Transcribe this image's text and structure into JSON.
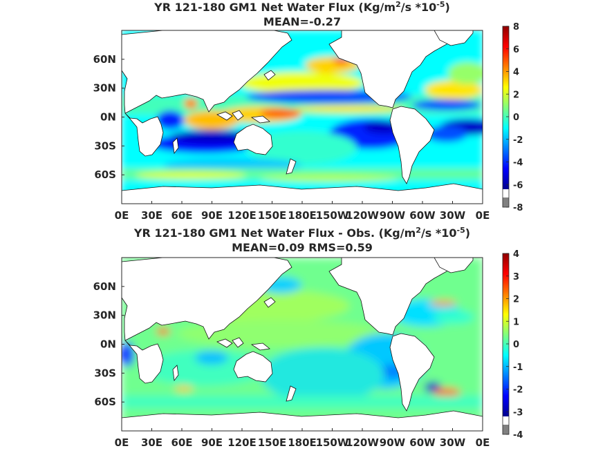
{
  "charts": [
    {
      "title_before_sup1": "YR 121-180 GM1  Net Water Flux (Kg/m",
      "title_sup1": "2",
      "title_mid": "/s *10",
      "title_sup2": "-5",
      "title_after": ")",
      "subtitle": "MEAN=-0.27",
      "colorbar_ticks": [
        "8",
        "6",
        "4",
        "2",
        "0",
        "-2",
        "-4",
        "-6",
        "-8"
      ]
    },
    {
      "title_before_sup1": "YR 121-180 GM1  Net Water Flux - Obs. (Kg/m",
      "title_sup1": "2",
      "title_mid": "/s *10",
      "title_sup2": "-5",
      "title_after": ")",
      "subtitle": "MEAN=0.09 RMS=0.59",
      "colorbar_ticks": [
        "4",
        "3",
        "2",
        "1",
        "0",
        "-1",
        "-2",
        "-3",
        "-4"
      ]
    }
  ],
  "x_ticks": [
    "0E",
    "30E",
    "60E",
    "90E",
    "120E",
    "150E",
    "180E",
    "150W",
    "120W",
    "90W",
    "60W",
    "30W",
    "0E"
  ],
  "y_ticks": [
    "60N",
    "30N",
    "0N",
    "30S",
    "60S"
  ],
  "chart_data": [
    {
      "type": "heatmap",
      "title": "YR 121-180 GM1  Net Water Flux (Kg/m2/s *10-5)",
      "subtitle": "MEAN=-0.27",
      "mean": -0.27,
      "x_range_lon": [
        0,
        360
      ],
      "y_range_lat": [
        -90,
        90
      ],
      "colorbar_range": [
        -8,
        8
      ],
      "colormap": "jet",
      "colors": {
        "low": "#00008f",
        "mid": "#7fff7f",
        "high": "#8f0000",
        "land": "#ffffff",
        "below_range": "#808080"
      }
    },
    {
      "type": "heatmap",
      "title": "YR 121-180 GM1  Net Water Flux - Obs. (Kg/m2/s *10-5)",
      "subtitle": "MEAN=0.09 RMS=0.59",
      "mean": 0.09,
      "rms": 0.59,
      "x_range_lon": [
        0,
        360
      ],
      "y_range_lat": [
        -90,
        90
      ],
      "colorbar_range": [
        -4,
        4
      ],
      "colormap": "jet",
      "colors": {
        "low": "#00008f",
        "mid": "#7fff7f",
        "high": "#8f0000",
        "land": "#ffffff",
        "below_range": "#808080"
      }
    }
  ]
}
